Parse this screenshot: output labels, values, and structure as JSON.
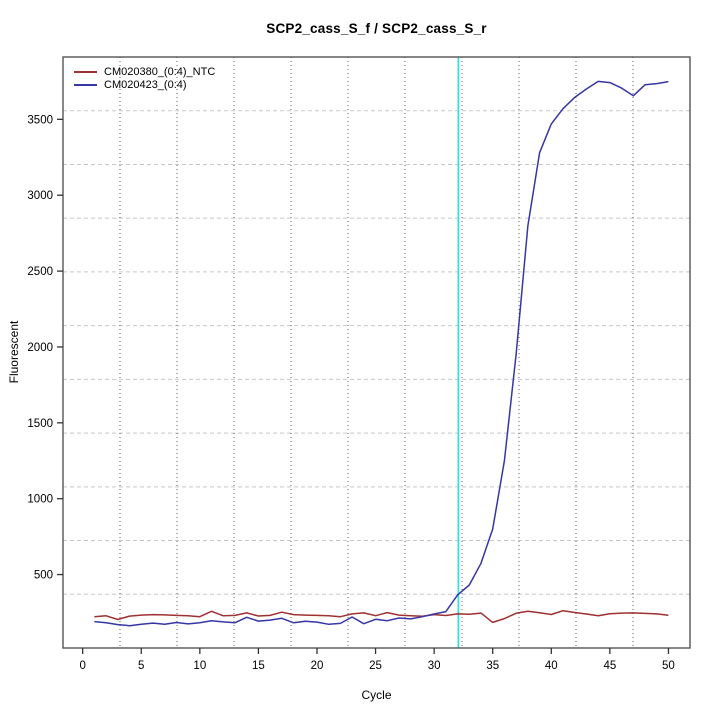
{
  "figure": {
    "background": "#ffffff",
    "box_color": "#545454",
    "tick_color": "#333333",
    "text_color": "#000000"
  },
  "chart_data": {
    "type": "line",
    "title": "SCP2_cass_S_f / SCP2_cass_S_r",
    "xlabel": "Cycle",
    "ylabel": "Fluorescent",
    "xlim": [
      -1.68,
      51.84
    ],
    "ylim": [
      16,
      3911
    ],
    "x_ticks": [
      0,
      5,
      10,
      15,
      20,
      25,
      30,
      35,
      40,
      45,
      50
    ],
    "y_ticks": [
      500,
      1000,
      1500,
      2000,
      2500,
      3000,
      3500
    ],
    "grid": {
      "divisions": 11,
      "h_style": "dashed",
      "h_color": "#c8c8c8",
      "v_style": "dotted",
      "v_color": "#5f5f5f"
    },
    "threshold_line": {
      "x": 32.07,
      "color": "#3bdede"
    },
    "legend_position": "top-left",
    "x": [
      1,
      2,
      3,
      4,
      5,
      6,
      7,
      8,
      9,
      10,
      11,
      12,
      13,
      14,
      15,
      16,
      17,
      18,
      19,
      20,
      21,
      22,
      23,
      24,
      25,
      26,
      27,
      28,
      29,
      30,
      31,
      32,
      33,
      34,
      35,
      36,
      37,
      38,
      39,
      40,
      41,
      42,
      43,
      44,
      45,
      46,
      47,
      48,
      49,
      50
    ],
    "series": [
      {
        "name": "CM020380_(0:4)_NTC",
        "color": "#9e3131",
        "values": [
          222,
          228,
          204,
          226,
          233,
          236,
          234,
          231,
          228,
          222,
          258,
          228,
          231,
          247,
          227,
          231,
          252,
          236,
          233,
          231,
          228,
          222,
          241,
          247,
          229,
          249,
          233,
          228,
          225,
          236,
          230,
          241,
          238,
          246,
          185,
          210,
          245,
          258,
          248,
          237,
          262,
          250,
          240,
          228,
          242,
          246,
          247,
          244,
          241,
          232
        ]
      },
      {
        "name": "CM020423_(0:4)",
        "color": "#3636a6",
        "values": [
          190,
          182,
          170,
          163,
          172,
          180,
          172,
          184,
          175,
          182,
          196,
          188,
          183,
          218,
          193,
          200,
          212,
          182,
          192,
          187,
          172,
          178,
          220,
          176,
          205,
          196,
          214,
          208,
          222,
          240,
          256,
          366,
          431,
          574,
          800,
          1250,
          1950,
          2800,
          3280,
          3470,
          3570,
          3645,
          3700,
          3750,
          3742,
          3706,
          3655,
          3728,
          3736,
          3749
        ]
      }
    ]
  }
}
